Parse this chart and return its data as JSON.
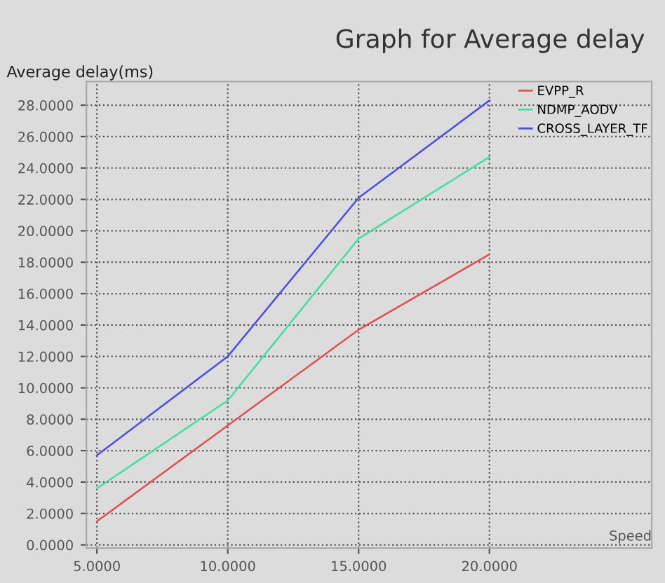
{
  "chart_data": {
    "type": "line",
    "title": "Graph for Average delay",
    "ylabel": "Average delay(ms)",
    "xlabel": "Speed",
    "x": [
      5,
      10,
      15,
      20
    ],
    "series": [
      {
        "name": "EVPP_R",
        "color": "#e05050",
        "values": [
          1.5,
          7.6,
          13.7,
          18.5
        ]
      },
      {
        "name": "NDMP_AODV",
        "color": "#40e0a0",
        "values": [
          3.6,
          9.2,
          19.5,
          24.7
        ]
      },
      {
        "name": "CROSS_LAYER_TF",
        "color": "#5050e0",
        "values": [
          5.7,
          12.0,
          22.1,
          28.3
        ]
      }
    ],
    "xlim": [
      4.6,
      26.2
    ],
    "ylim": [
      -0.2,
      29.5
    ],
    "xticks": [
      {
        "value": 5,
        "label": "5.0000"
      },
      {
        "value": 10,
        "label": "10.0000"
      },
      {
        "value": 15,
        "label": "15.0000"
      },
      {
        "value": 20,
        "label": "20.0000"
      }
    ],
    "yticks": [
      {
        "value": 0,
        "label": "0.0000"
      },
      {
        "value": 2,
        "label": "2.0000"
      },
      {
        "value": 4,
        "label": "4.0000"
      },
      {
        "value": 6,
        "label": "6.0000"
      },
      {
        "value": 8,
        "label": "8.0000"
      },
      {
        "value": 10,
        "label": "10.0000"
      },
      {
        "value": 12,
        "label": "12.0000"
      },
      {
        "value": 14,
        "label": "14.0000"
      },
      {
        "value": 16,
        "label": "16.0000"
      },
      {
        "value": 18,
        "label": "18.0000"
      },
      {
        "value": 20,
        "label": "20.0000"
      },
      {
        "value": 22,
        "label": "22.0000"
      },
      {
        "value": 24,
        "label": "24.0000"
      },
      {
        "value": 26,
        "label": "26.0000"
      },
      {
        "value": 28,
        "label": "28.0000"
      }
    ],
    "grid": true,
    "legend": "top right",
    "marker": "none",
    "line_style": "solid"
  }
}
